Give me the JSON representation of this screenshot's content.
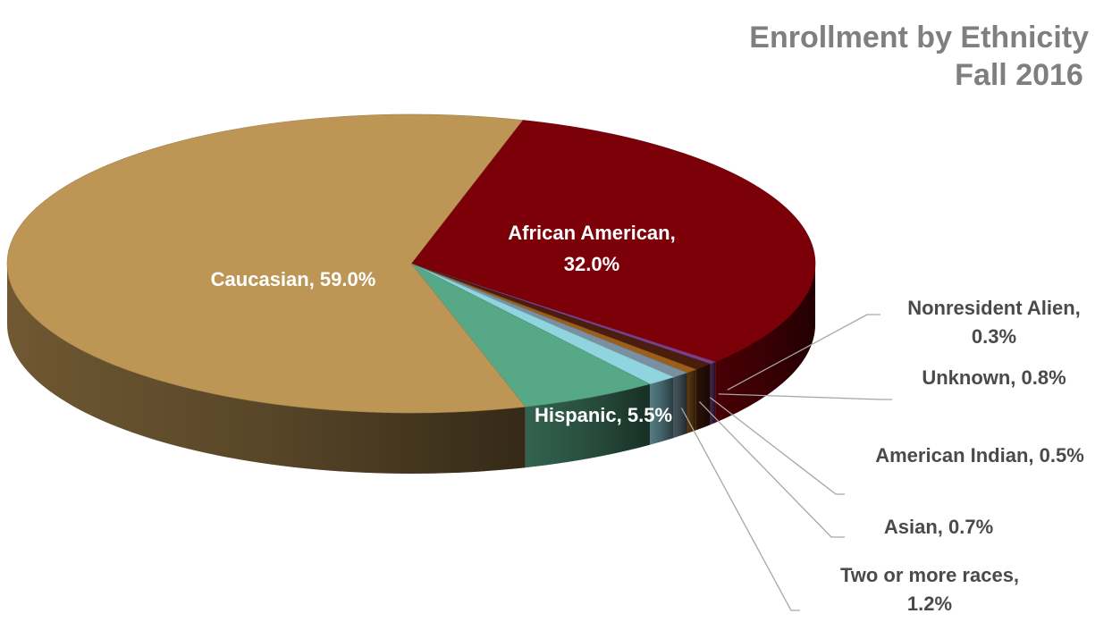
{
  "chart_data": {
    "type": "pie",
    "style": "3d",
    "title": "Enrollment by Ethnicity",
    "subtitle": "Fall 2016",
    "legend": "none",
    "slices": [
      {
        "name": "African American",
        "value": 32.0,
        "label": "African American,",
        "label2": "32.0%",
        "color": "#7b0008",
        "label_pos": "inside"
      },
      {
        "name": "Nonresident Alien",
        "value": 0.3,
        "label": "Nonresident Alien,",
        "label2": "0.3%",
        "color": "#7a3f88",
        "label_pos": "outside"
      },
      {
        "name": "Unknown",
        "value": 0.8,
        "label": "Unknown, 0.8%",
        "label2": "",
        "color": "#4a1d0c",
        "label_pos": "outside"
      },
      {
        "name": "American Indian",
        "value": 0.5,
        "label": "American Indian, 0.5%",
        "label2": "",
        "color": "#9b5f1a",
        "label_pos": "outside"
      },
      {
        "name": "Asian",
        "value": 0.7,
        "label": "Asian, 0.7%",
        "label2": "",
        "color": "#7a8fa0",
        "label_pos": "outside"
      },
      {
        "name": "Two or more races",
        "value": 1.2,
        "label": "Two or more races,",
        "label2": "1.2%",
        "color": "#8fd4de",
        "label_pos": "outside"
      },
      {
        "name": "Hispanic",
        "value": 5.5,
        "label": "Hispanic, 5.5%",
        "label2": "",
        "color": "#57a887",
        "label_pos": "inside"
      },
      {
        "name": "Caucasian",
        "value": 59.0,
        "label": "Caucasian, 59.0%",
        "label2": "",
        "color": "#bd9656",
        "label_pos": "inside"
      }
    ]
  }
}
